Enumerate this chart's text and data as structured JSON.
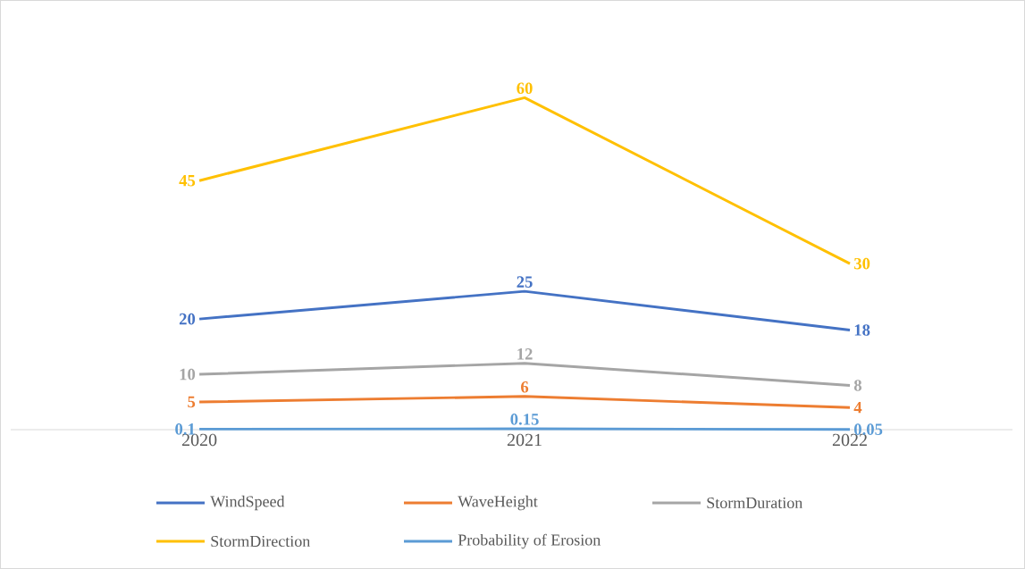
{
  "chart_data": {
    "type": "line",
    "categories": [
      "2020",
      "2021",
      "2022"
    ],
    "series": [
      {
        "name": "WindSpeed",
        "color": "#4472c4",
        "values": [
          20,
          25,
          18
        ]
      },
      {
        "name": "WaveHeight",
        "color": "#ed7d31",
        "values": [
          5,
          6,
          4
        ]
      },
      {
        "name": "StormDuration",
        "color": "#a5a5a5",
        "values": [
          10,
          12,
          8
        ]
      },
      {
        "name": "StormDirection",
        "color": "#ffc000",
        "values": [
          45,
          60,
          30
        ]
      },
      {
        "name": "Probability of Erosion",
        "color": "#5b9bd5",
        "values": [
          0.1,
          0.15,
          0.05
        ]
      }
    ],
    "data_labels": true,
    "legend": "bottom",
    "marker": "none"
  }
}
